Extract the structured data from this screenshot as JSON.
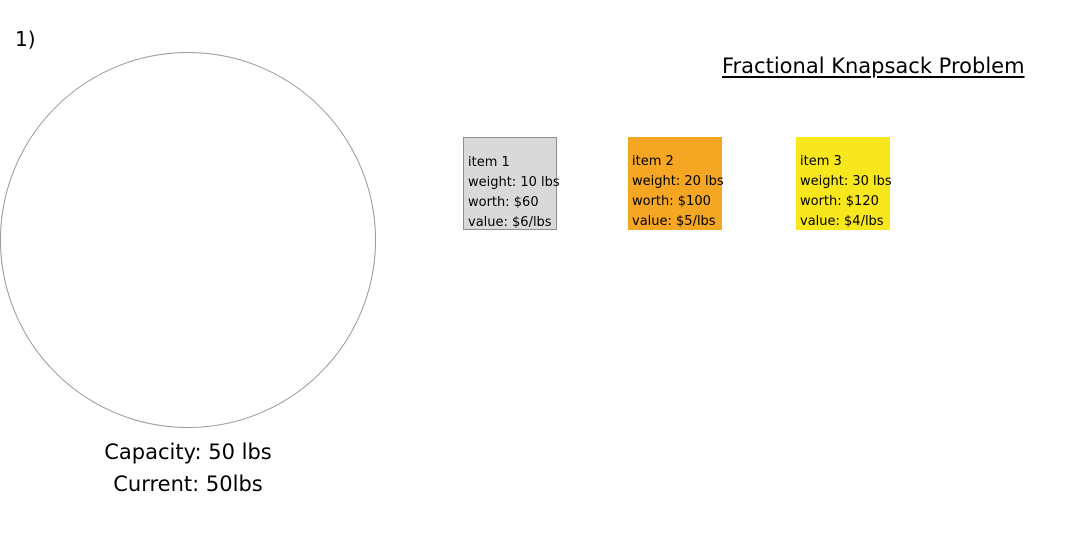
{
  "step_label": "1)",
  "title": "Fractional Knapsack Problem",
  "knapsack": {
    "capacity_text": "Capacity: 50 lbs",
    "current_text": "Current: 50lbs"
  },
  "items": [
    {
      "name": "item 1",
      "weight": "weight: 10 lbs",
      "worth": "worth: $60",
      "value": "value: $6/lbs",
      "color": "#d9d9d9"
    },
    {
      "name": "item 2",
      "weight": "weight: 20 lbs",
      "worth": "worth: $100",
      "value": "value: $5/lbs",
      "color": "#f5a623"
    },
    {
      "name": "item 3",
      "weight": "weight: 30 lbs",
      "worth": "worth: $120",
      "value": "value: $4/lbs",
      "color": "#f8e71c"
    }
  ]
}
